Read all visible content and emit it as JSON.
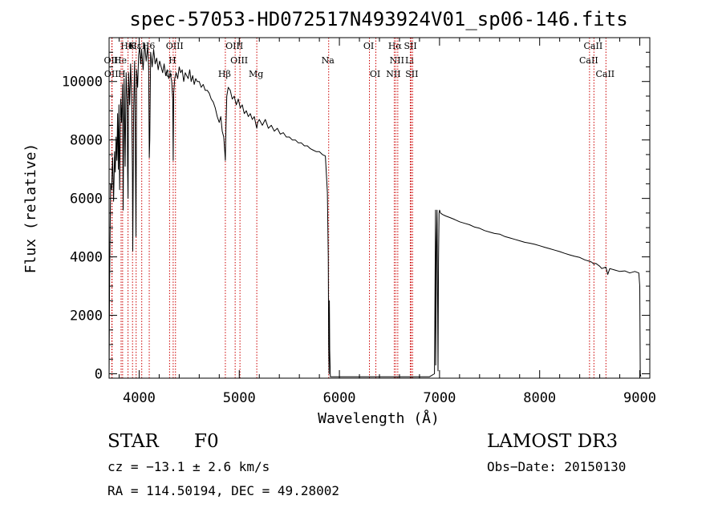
{
  "chart_data": {
    "type": "line",
    "title": "spec-57053-HD072517N493924V01_sp06-146.fits",
    "xlabel": "Wavelength (Å)",
    "ylabel": "Flux (relative)",
    "xlim": [
      3700,
      9100
    ],
    "ylim": [
      -150,
      11500
    ],
    "xticks": [
      4000,
      5000,
      6000,
      7000,
      8000,
      9000
    ],
    "yticks": [
      0,
      2000,
      4000,
      6000,
      8000,
      10000
    ],
    "xtick_labels": [
      "4000",
      "5000",
      "6000",
      "7000",
      "8000",
      "9000"
    ],
    "ytick_labels": [
      "0",
      "2000",
      "4000",
      "6000",
      "8000",
      "10000"
    ],
    "grid": false,
    "series": [
      {
        "name": "spectrum",
        "color": "#000000",
        "x": [
          3700,
          3705,
          3715,
          3725,
          3735,
          3745,
          3755,
          3762,
          3770,
          3778,
          3785,
          3792,
          3798,
          3805,
          3815,
          3825,
          3835,
          3840,
          3850,
          3860,
          3870,
          3880,
          3885,
          3889,
          3895,
          3905,
          3915,
          3925,
          3933,
          3936,
          3945,
          3955,
          3962,
          3968,
          3975,
          3985,
          3995,
          4005,
          4015,
          4025,
          4040,
          4055,
          4070,
          4085,
          4095,
          4101,
          4106,
          4115,
          4130,
          4145,
          4160,
          4175,
          4190,
          4205,
          4220,
          4235,
          4250,
          4265,
          4280,
          4295,
          4310,
          4325,
          4335,
          4340,
          4345,
          4355,
          4370,
          4385,
          4400,
          4415,
          4430,
          4445,
          4460,
          4475,
          4490,
          4505,
          4520,
          4535,
          4550,
          4565,
          4580,
          4600,
          4620,
          4640,
          4660,
          4680,
          4700,
          4720,
          4740,
          4760,
          4780,
          4800,
          4815,
          4830,
          4845,
          4855,
          4861,
          4867,
          4875,
          4890,
          4910,
          4930,
          4950,
          4970,
          4990,
          5010,
          5030,
          5050,
          5070,
          5090,
          5110,
          5130,
          5150,
          5168,
          5175,
          5183,
          5200,
          5230,
          5260,
          5290,
          5320,
          5350,
          5380,
          5410,
          5440,
          5470,
          5500,
          5530,
          5560,
          5590,
          5620,
          5650,
          5680,
          5710,
          5740,
          5770,
          5800,
          5830,
          5860,
          5880,
          5889,
          5893,
          5897,
          5900,
          5903,
          5910,
          5920,
          5940,
          5970,
          6000,
          6100,
          6200,
          6300,
          6400,
          6500,
          6600,
          6700,
          6800,
          6900,
          6950,
          6960,
          6962,
          6970,
          6975,
          6985,
          6990,
          6995,
          7000,
          7010,
          7030,
          7060,
          7100,
          7150,
          7200,
          7250,
          7300,
          7350,
          7400,
          7450,
          7500,
          7550,
          7600,
          7650,
          7700,
          7750,
          7800,
          7850,
          7900,
          7950,
          8000,
          8050,
          8100,
          8150,
          8200,
          8250,
          8300,
          8350,
          8400,
          8450,
          8498,
          8520,
          8542,
          8560,
          8600,
          8620,
          8662,
          8680,
          8700,
          8750,
          8800,
          8850,
          8900,
          8950,
          8990,
          9000,
          9005,
          9010
        ],
        "values": [
          0,
          3100,
          6500,
          6300,
          7400,
          5900,
          7600,
          6900,
          8100,
          7300,
          8900,
          7000,
          9200,
          6300,
          9400,
          8600,
          9900,
          5600,
          10100,
          7100,
          10300,
          9300,
          7000,
          6000,
          10300,
          9200,
          10600,
          9500,
          6800,
          4200,
          9000,
          10700,
          7900,
          4700,
          10400,
          9800,
          10900,
          11200,
          10600,
          11100,
          10400,
          11300,
          10700,
          11200,
          10500,
          7400,
          8000,
          11000,
          10500,
          11100,
          10600,
          10800,
          10400,
          10700,
          10500,
          10300,
          10600,
          10200,
          10400,
          10100,
          10300,
          10000,
          9400,
          7300,
          9600,
          10100,
          10300,
          10100,
          10500,
          10300,
          10400,
          10000,
          10300,
          10200,
          10100,
          10400,
          10000,
          10200,
          9900,
          10100,
          10000,
          10000,
          9800,
          9900,
          9700,
          9700,
          9600,
          9400,
          9300,
          9100,
          8800,
          8600,
          8800,
          8300,
          8100,
          7600,
          7300,
          8500,
          9500,
          9800,
          9700,
          9400,
          9500,
          9200,
          9400,
          9100,
          9200,
          8900,
          9000,
          8800,
          8900,
          8700,
          8800,
          8500,
          8400,
          8600,
          8700,
          8500,
          8700,
          8400,
          8500,
          8300,
          8400,
          8200,
          8250,
          8100,
          8100,
          8000,
          8000,
          7900,
          7900,
          7800,
          7800,
          7700,
          7650,
          7600,
          7600,
          7500,
          7450,
          6200,
          4000,
          1000,
          0,
          2500,
          800,
          -100,
          -100,
          -100,
          -100,
          -100,
          -100,
          -100,
          -100,
          -100,
          -100,
          -100,
          -100,
          -100,
          -100,
          0,
          5600,
          300,
          4500,
          5600,
          100,
          3800,
          5500,
          5600,
          5500,
          5450,
          5400,
          5350,
          5280,
          5200,
          5150,
          5100,
          5020,
          4980,
          4900,
          4850,
          4800,
          4780,
          4700,
          4650,
          4600,
          4550,
          4500,
          4470,
          4430,
          4380,
          4330,
          4280,
          4230,
          4180,
          4120,
          4070,
          4020,
          3980,
          3900,
          3850,
          3820,
          3750,
          3780,
          3680,
          3600,
          3650,
          3400,
          3600,
          3550,
          3500,
          3520,
          3450,
          3500,
          3450,
          3000,
          0,
          -100
        ]
      }
    ],
    "line_markers": [
      {
        "name": "H6",
        "x": 3889,
        "row": 0
      },
      {
        "name": "K",
        "x": 3934,
        "row": 0
      },
      {
        "name": "Hε",
        "x": 3970,
        "row": 0
      },
      {
        "name": "H6",
        "x": 4101,
        "row": 0
      },
      {
        "name": "OIII",
        "x": 4363,
        "row": 0
      },
      {
        "name": "OIII",
        "x": 4959,
        "row": 0
      },
      {
        "name": "OI",
        "x": 6300,
        "row": 0
      },
      {
        "name": "Hα",
        "x": 6563,
        "row": 0
      },
      {
        "name": "SII",
        "x": 6717,
        "row": 0
      },
      {
        "name": "CaII",
        "x": 8542,
        "row": 0
      },
      {
        "name": "OII",
        "x": 3727,
        "row": 1
      },
      {
        "name": "He",
        "x": 3820,
        "row": 1
      },
      {
        "name": "I",
        "x": 4026,
        "row": 1
      },
      {
        "name": "H",
        "x": 4340,
        "row": 1
      },
      {
        "name": "OIII",
        "x": 5007,
        "row": 1
      },
      {
        "name": "Na",
        "x": 5893,
        "row": 1
      },
      {
        "name": "NII",
        "x": 6583,
        "row": 1
      },
      {
        "name": "Li",
        "x": 6708,
        "row": 1
      },
      {
        "name": "CaII",
        "x": 8498,
        "row": 1
      },
      {
        "name": "OII",
        "x": 3730,
        "row": 2
      },
      {
        "name": "H",
        "x": 3835,
        "row": 2
      },
      {
        "name": "G",
        "x": 4304,
        "row": 2
      },
      {
        "name": "Hβ",
        "x": 4861,
        "row": 2
      },
      {
        "name": "Mg",
        "x": 5175,
        "row": 2
      },
      {
        "name": "OI",
        "x": 6364,
        "row": 2
      },
      {
        "name": "NII",
        "x": 6548,
        "row": 2
      },
      {
        "name": "SII",
        "x": 6731,
        "row": 2
      },
      {
        "name": "CaII",
        "x": 8662,
        "row": 2
      }
    ],
    "marker_color": "#cc0000"
  },
  "info": {
    "object_class": "STAR",
    "subclass": "F0",
    "survey": "LAMOST DR3",
    "cz": "cz = −13.1 ± 2.6 km/s",
    "obs_date": "Obs−Date: 20150130",
    "radec": "RA = 114.50194, DEC =  49.28002"
  }
}
